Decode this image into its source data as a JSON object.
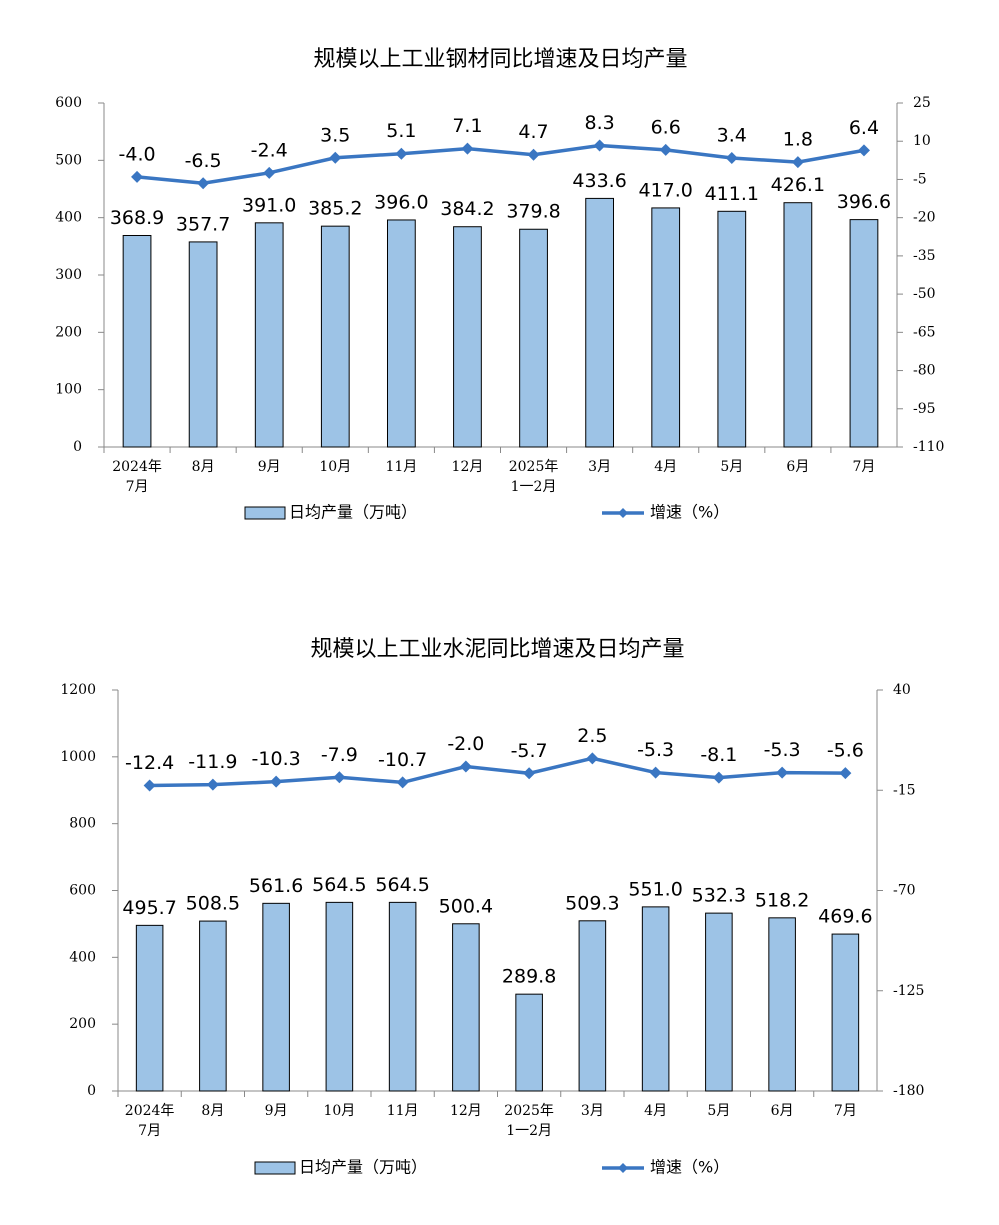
{
  "chart_data": [
    {
      "type": "bar-line",
      "title": "规模以上工业钢材同比增速及日均产量",
      "categories": [
        "2024年\n7月",
        "8月",
        "9月",
        "10月",
        "11月",
        "12月",
        "2025年\n1一2月",
        "3月",
        "4月",
        "5月",
        "6月",
        "7月"
      ],
      "series": [
        {
          "name": "日均产量（万吨）",
          "color": "#9dc3e6",
          "type": "bar",
          "values": [
            368.9,
            357.7,
            391.0,
            385.2,
            396.0,
            384.2,
            379.8,
            433.6,
            417.0,
            411.1,
            426.1,
            396.6
          ],
          "value_labels": [
            "368.9",
            "357.7",
            "391.0",
            "385.2",
            "396.0",
            "384.2",
            "379.8",
            "433.6",
            "417.0",
            "411.1",
            "426.1",
            "396.6"
          ]
        },
        {
          "name": "增速（%）",
          "color": "#3a76c2",
          "type": "line",
          "axis": "y2",
          "values": [
            -4.0,
            -6.5,
            -2.4,
            3.5,
            5.1,
            7.1,
            4.7,
            8.3,
            6.6,
            3.4,
            1.8,
            6.4
          ],
          "value_labels": [
            "-4.0",
            "-6.5",
            "-2.4",
            "3.5",
            "5.1",
            "7.1",
            "4.7",
            "8.3",
            "6.6",
            "3.4",
            "1.8",
            "6.4"
          ]
        }
      ],
      "ylim": [
        0,
        600
      ],
      "yticks": [
        0,
        100,
        200,
        300,
        400,
        500,
        600
      ],
      "y2lim": [
        -110,
        25
      ],
      "y2ticks": [
        -110,
        -95,
        -80,
        -65,
        -50,
        -35,
        -20,
        -5,
        10,
        25
      ]
    },
    {
      "type": "bar-line",
      "title": "规模以上工业水泥同比增速及日均产量",
      "categories": [
        "2024年\n7月",
        "8月",
        "9月",
        "10月",
        "11月",
        "12月",
        "2025年\n1一2月",
        "3月",
        "4月",
        "5月",
        "6月",
        "7月"
      ],
      "series": [
        {
          "name": "日均产量（万吨）",
          "color": "#9dc3e6",
          "type": "bar",
          "values": [
            495.7,
            508.5,
            561.6,
            564.5,
            564.5,
            500.4,
            289.8,
            509.3,
            551.0,
            532.3,
            518.2,
            469.6
          ],
          "value_labels": [
            "495.7",
            "508.5",
            "561.6",
            "564.5",
            "564.5",
            "500.4",
            "289.8",
            "509.3",
            "551.0",
            "532.3",
            "518.2",
            "469.6"
          ]
        },
        {
          "name": "增速（%）",
          "color": "#3a76c2",
          "type": "line",
          "axis": "y2",
          "values": [
            -12.4,
            -11.9,
            -10.3,
            -7.9,
            -10.7,
            -2.0,
            -5.7,
            2.5,
            -5.3,
            -8.1,
            -5.3,
            -5.6
          ],
          "value_labels": [
            "-12.4",
            "-11.9",
            "-10.3",
            "-7.9",
            "-10.7",
            "-2.0",
            "-5.7",
            "2.5",
            "-5.3",
            "-8.1",
            "-5.3",
            "-5.6"
          ]
        }
      ],
      "ylim": [
        0,
        1200
      ],
      "yticks": [
        0,
        200,
        400,
        600,
        800,
        1000,
        1200
      ],
      "y2lim": [
        -180,
        40
      ],
      "y2ticks": [
        -180,
        -125,
        -70,
        -15,
        40
      ]
    }
  ]
}
